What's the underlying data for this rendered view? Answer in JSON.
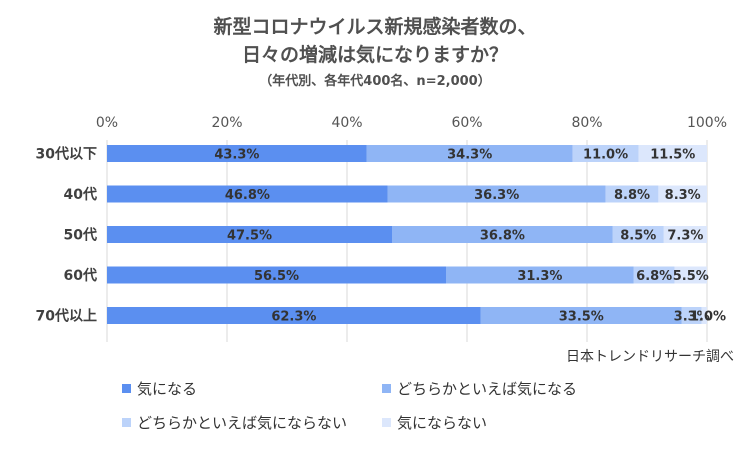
{
  "title_line1": "新型コロナウイルス新規感染者数の、",
  "title_line2": "日々の増減は気になりますか？",
  "subtitle": "（年代別、各年代400名、n=2,000）",
  "source": "日本トレンドリサーチ調べ",
  "chart_data": {
    "type": "bar",
    "orientation": "horizontal",
    "stacked": "percent",
    "categories": [
      "30代以下",
      "40代",
      "50代",
      "60代",
      "70代以上"
    ],
    "x_ticks": [
      "0%",
      "20%",
      "40%",
      "60%",
      "80%",
      "100%"
    ],
    "xlim": [
      0,
      100
    ],
    "grid": true,
    "legend_position": "bottom",
    "series": [
      {
        "name": "気になる",
        "color": "#5b8ff0",
        "values": [
          43.3,
          46.8,
          47.5,
          56.5,
          62.3
        ],
        "labels": [
          "43.3%",
          "46.8%",
          "47.5%",
          "56.5%",
          "62.3%"
        ]
      },
      {
        "name": "どちらかといえば気になる",
        "color": "#8fb5f5",
        "values": [
          34.3,
          36.3,
          36.8,
          31.3,
          33.5
        ],
        "labels": [
          "34.3%",
          "36.3%",
          "36.8%",
          "31.3%",
          "33.5%"
        ]
      },
      {
        "name": "どちらかといえば気にならない",
        "color": "#bcd3fa",
        "values": [
          11.0,
          8.8,
          8.5,
          6.8,
          3.3
        ],
        "labels": [
          "11.0%",
          "8.8%",
          "8.5%",
          "6.8%",
          "3.3%"
        ]
      },
      {
        "name": "気にならない",
        "color": "#dce7fc",
        "values": [
          11.5,
          8.3,
          7.3,
          5.5,
          1.0
        ],
        "labels": [
          "11.5%",
          "8.3%",
          "7.3%",
          "5.5%",
          "1.0%"
        ]
      }
    ]
  }
}
